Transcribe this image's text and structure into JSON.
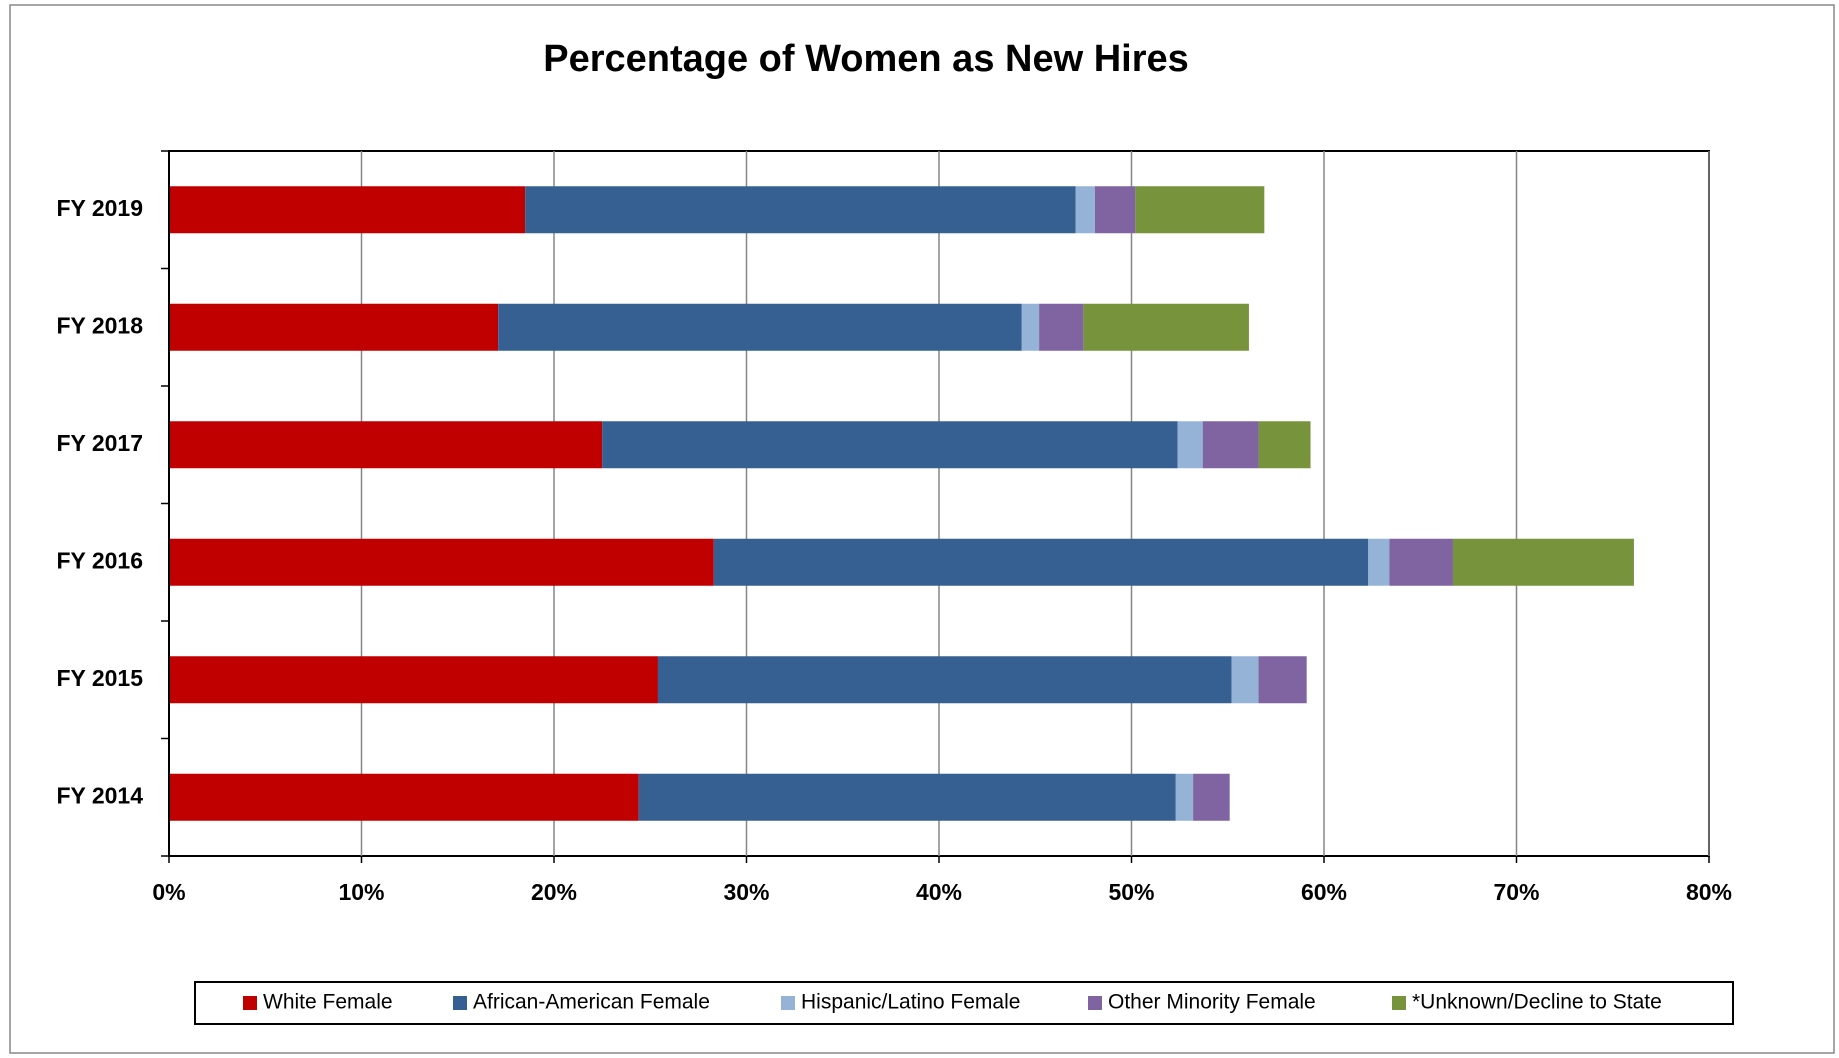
{
  "chart_data": {
    "type": "stacked_bar_horizontal",
    "title": "Percentage of Women as New Hires",
    "categories": [
      "FY 2019",
      "FY 2018",
      "FY 2017",
      "FY 2016",
      "FY 2015",
      "FY 2014"
    ],
    "series": [
      {
        "name": "White Female",
        "color": "#C00000",
        "values": [
          18.5,
          17.1,
          22.5,
          28.3,
          25.4,
          24.4
        ]
      },
      {
        "name": "African-American Female",
        "color": "#376092",
        "values": [
          28.6,
          27.2,
          29.9,
          34.0,
          29.8,
          27.9
        ]
      },
      {
        "name": "Hispanic/Latino Female",
        "color": "#95B3D7",
        "values": [
          1.0,
          0.9,
          1.3,
          1.1,
          1.4,
          0.9
        ]
      },
      {
        "name": "Other Minority Female",
        "color": "#8064A2",
        "values": [
          2.1,
          2.3,
          2.9,
          3.3,
          2.5,
          1.9
        ]
      },
      {
        "name": "*Unknown/Decline to State",
        "color": "#77933C",
        "values": [
          6.7,
          8.6,
          2.7,
          9.4,
          0,
          0
        ]
      }
    ],
    "xlim": [
      0,
      80
    ],
    "xticks": [
      {
        "value": 0,
        "label": "0%"
      },
      {
        "value": 10,
        "label": "10%"
      },
      {
        "value": 20,
        "label": "20%"
      },
      {
        "value": 30,
        "label": "30%"
      },
      {
        "value": 40,
        "label": "40%"
      },
      {
        "value": 50,
        "label": "50%"
      },
      {
        "value": 60,
        "label": "60%"
      },
      {
        "value": 70,
        "label": "70%"
      },
      {
        "value": 80,
        "label": "80%"
      }
    ],
    "grid": true,
    "legend": "bottom"
  }
}
